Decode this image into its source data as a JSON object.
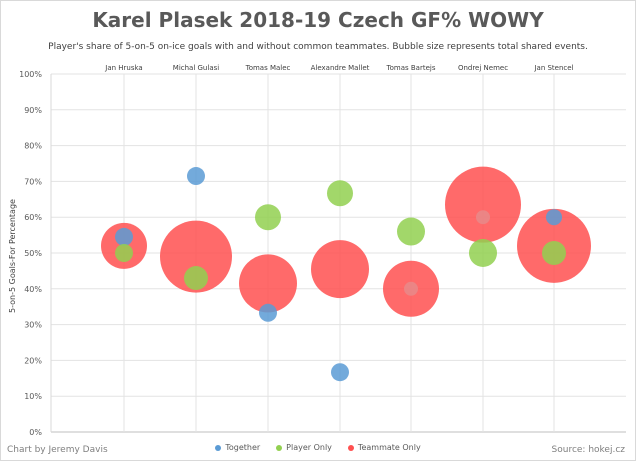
{
  "chart_data": {
    "type": "scatter",
    "title": "Karel Plasek 2018-19 Czech GF% WOWY",
    "subtitle": "Player's share of 5-on-5 on-ice goals with and without common teammates. Bubble size represents total shared events.",
    "ylabel": "5-on-5 Goals-For Percentage",
    "ylim": [
      0,
      100
    ],
    "ytick_labels": [
      "0%",
      "10%",
      "20%",
      "30%",
      "40%",
      "50%",
      "60%",
      "70%",
      "80%",
      "90%",
      "100%"
    ],
    "categories": [
      "Jan Hruska",
      "Michal Gulasi",
      "Tomas Malec",
      "Alexandre Mallet",
      "Tomas Bartejs",
      "Ondrej Nemec",
      "Jan Stencel"
    ],
    "grid": true,
    "legend_position": "bottom",
    "series": [
      {
        "name": "Together",
        "color": "#5b9bd5",
        "values": [
          54.5,
          71.5,
          33.3,
          16.7,
          null,
          null,
          60.0
        ],
        "sizes": [
          9,
          9,
          9,
          9,
          null,
          null,
          8
        ]
      },
      {
        "name": "Player Only",
        "color": "#92d050",
        "values": [
          50.0,
          43.0,
          60.0,
          66.7,
          56.0,
          50.0,
          50.0
        ],
        "sizes": [
          9,
          12,
          13,
          13,
          14,
          14,
          12
        ]
      },
      {
        "name": "Teammate Only",
        "color": "#ff5050",
        "values": [
          52.0,
          49.0,
          41.5,
          45.5,
          40.0,
          63.5,
          52.0
        ],
        "sizes": [
          23,
          36,
          29,
          29,
          28,
          38,
          37
        ]
      },
      {
        "name": "",
        "color": "#e88a8a",
        "values": [
          null,
          null,
          null,
          null,
          40.0,
          60.0,
          null
        ],
        "sizes": [
          null,
          null,
          null,
          null,
          7,
          7,
          null
        ]
      }
    ]
  },
  "footer": {
    "credit": "Chart by Jeremy Davis",
    "source": "Source: hokej.cz"
  }
}
